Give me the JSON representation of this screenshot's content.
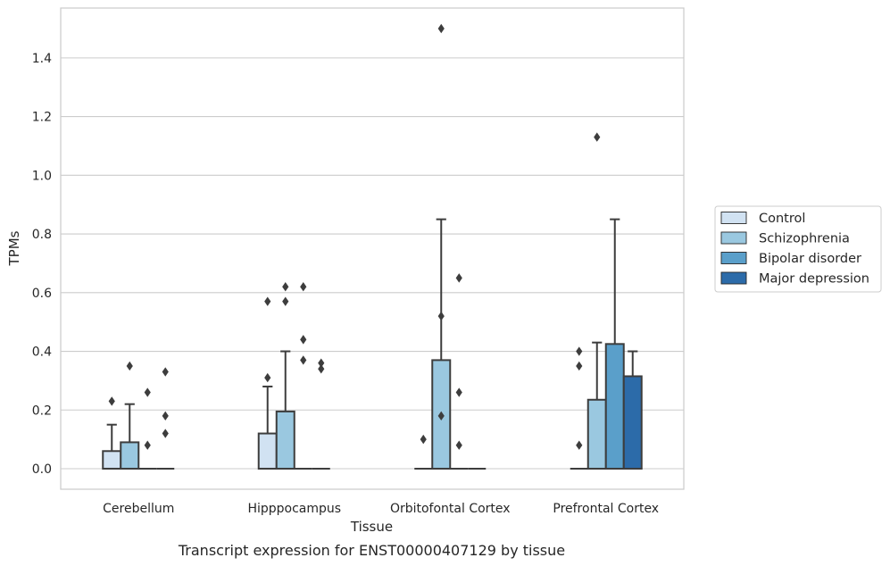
{
  "chart_data": {
    "type": "box",
    "caption": "Transcript expression for ENST00000407129 by tissue",
    "xlabel": "Tissue",
    "ylabel": "TPMs",
    "ylim": [
      -0.07,
      1.57
    ],
    "yticks": [
      0.0,
      0.2,
      0.4,
      0.6,
      0.8,
      1.0,
      1.2,
      1.4
    ],
    "ytick_labels": [
      "0.0",
      "0.2",
      "0.4",
      "0.6",
      "0.8",
      "1.0",
      "1.2",
      "1.4"
    ],
    "categories": [
      "Cerebellum",
      "Hipppocampus",
      "Orbitofontal Cortex",
      "Prefrontal Cortex"
    ],
    "grid": "horizontal",
    "legend_position": "right",
    "series": [
      {
        "name": "Control",
        "color": "#d1e2f2",
        "boxes": [
          {
            "q1": 0.0,
            "q3": 0.06,
            "median": 0.0,
            "whisker_low": 0.0,
            "whisker_high": 0.15,
            "outliers": [
              0.23
            ]
          },
          {
            "q1": 0.0,
            "q3": 0.12,
            "median": 0.0,
            "whisker_low": 0.0,
            "whisker_high": 0.28,
            "outliers": [
              0.31,
              0.57
            ]
          },
          {
            "q1": 0.0,
            "q3": 0.0,
            "median": 0.0,
            "whisker_low": 0.0,
            "whisker_high": 0.0,
            "outliers": [
              0.1
            ]
          },
          {
            "q1": 0.0,
            "q3": 0.0,
            "median": 0.0,
            "whisker_low": 0.0,
            "whisker_high": 0.0,
            "outliers": [
              0.08,
              0.35,
              0.4
            ]
          }
        ]
      },
      {
        "name": "Schizophrenia",
        "color": "#9ac8e0",
        "boxes": [
          {
            "q1": 0.0,
            "q3": 0.09,
            "median": 0.0,
            "whisker_low": 0.0,
            "whisker_high": 0.22,
            "outliers": [
              0.35
            ]
          },
          {
            "q1": 0.0,
            "q3": 0.195,
            "median": 0.0,
            "whisker_low": 0.0,
            "whisker_high": 0.4,
            "outliers": [
              0.57,
              0.62
            ]
          },
          {
            "q1": 0.0,
            "q3": 0.37,
            "median": 0.0,
            "whisker_low": 0.0,
            "whisker_high": 0.85,
            "outliers": [
              0.18,
              0.52,
              1.5
            ]
          },
          {
            "q1": 0.0,
            "q3": 0.235,
            "median": 0.0,
            "whisker_low": 0.0,
            "whisker_high": 0.43,
            "outliers": [
              1.13
            ]
          }
        ]
      },
      {
        "name": "Bipolar disorder",
        "color": "#5a9fca",
        "boxes": [
          {
            "q1": 0.0,
            "q3": 0.0,
            "median": 0.0,
            "whisker_low": 0.0,
            "whisker_high": 0.0,
            "outliers": [
              0.08,
              0.26
            ]
          },
          {
            "q1": 0.0,
            "q3": 0.0,
            "median": 0.0,
            "whisker_low": 0.0,
            "whisker_high": 0.0,
            "outliers": [
              0.37,
              0.44,
              0.62
            ]
          },
          {
            "q1": 0.0,
            "q3": 0.0,
            "median": 0.0,
            "whisker_low": 0.0,
            "whisker_high": 0.0,
            "outliers": [
              0.08,
              0.26,
              0.65
            ]
          },
          {
            "q1": 0.0,
            "q3": 0.425,
            "median": 0.0,
            "whisker_low": 0.0,
            "whisker_high": 0.85,
            "outliers": []
          }
        ]
      },
      {
        "name": "Major depression",
        "color": "#2c6ba9",
        "boxes": [
          {
            "q1": 0.0,
            "q3": 0.0,
            "median": 0.0,
            "whisker_low": 0.0,
            "whisker_high": 0.0,
            "outliers": [
              0.12,
              0.18,
              0.33
            ]
          },
          {
            "q1": 0.0,
            "q3": 0.0,
            "median": 0.0,
            "whisker_low": 0.0,
            "whisker_high": 0.0,
            "outliers": [
              0.34,
              0.36
            ]
          },
          {
            "q1": 0.0,
            "q3": 0.0,
            "median": 0.0,
            "whisker_low": 0.0,
            "whisker_high": 0.0,
            "outliers": []
          },
          {
            "q1": 0.0,
            "q3": 0.315,
            "median": 0.0,
            "whisker_low": 0.0,
            "whisker_high": 0.4,
            "outliers": []
          }
        ]
      }
    ]
  }
}
